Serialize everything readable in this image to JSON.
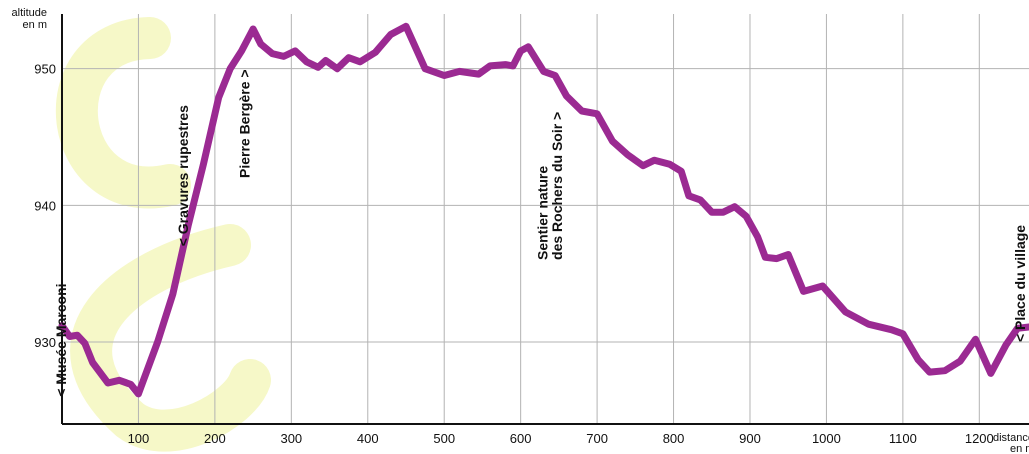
{
  "chart_data": {
    "type": "line",
    "ylabel_line1": "altitude",
    "ylabel_line2": "en m",
    "xlabel_line1": "distance",
    "xlabel_line2": "en m",
    "xlim": [
      0,
      1265
    ],
    "ylim": [
      924,
      954
    ],
    "x_ticks": [
      100,
      200,
      300,
      400,
      500,
      600,
      700,
      800,
      900,
      1000,
      1100,
      1200
    ],
    "y_ticks": [
      930,
      940,
      950
    ],
    "series": [
      {
        "color": "#9b2a92",
        "x": [
          0,
          10,
          20,
          30,
          40,
          60,
          75,
          90,
          100,
          125,
          145,
          165,
          185,
          205,
          220,
          235,
          250,
          260,
          275,
          290,
          305,
          320,
          335,
          345,
          360,
          375,
          390,
          410,
          430,
          450,
          475,
          500,
          520,
          545,
          560,
          580,
          590,
          600,
          610,
          630,
          645,
          660,
          680,
          700,
          720,
          740,
          760,
          775,
          795,
          810,
          820,
          835,
          850,
          865,
          880,
          895,
          910,
          920,
          935,
          950,
          970,
          995,
          1025,
          1055,
          1085,
          1100,
          1120,
          1135,
          1155,
          1175,
          1195,
          1215,
          1235,
          1250,
          1265
        ],
        "y": [
          931.2,
          930.4,
          930.5,
          929.9,
          928.5,
          927.0,
          927.2,
          926.9,
          926.2,
          930.0,
          933.5,
          938.5,
          943.0,
          947.9,
          950.0,
          951.3,
          952.9,
          951.8,
          951.1,
          950.9,
          951.3,
          950.5,
          950.1,
          950.6,
          950.0,
          950.8,
          950.5,
          951.2,
          952.5,
          953.1,
          950.0,
          949.5,
          949.8,
          949.6,
          950.2,
          950.3,
          950.2,
          951.3,
          951.6,
          949.8,
          949.5,
          948.0,
          946.9,
          946.7,
          944.7,
          943.7,
          942.9,
          943.3,
          943.0,
          942.5,
          940.7,
          940.4,
          939.5,
          939.5,
          939.9,
          939.2,
          937.7,
          936.2,
          936.1,
          936.4,
          933.7,
          934.1,
          932.2,
          931.3,
          930.9,
          930.6,
          928.7,
          927.8,
          927.9,
          928.6,
          930.2,
          927.7,
          929.8,
          931.0,
          931.1
        ]
      }
    ],
    "annotations": [
      {
        "text": "< Musée Marconi",
        "x": 5,
        "y": 926
      },
      {
        "text": "< Gravures rupestres",
        "x": 165,
        "y": 937
      },
      {
        "text": "Pierre Bergère >",
        "x": 245,
        "y": 942
      },
      {
        "text": "Sentier nature",
        "x": 635,
        "y": 936
      },
      {
        "text": "des Rochers du Soir >",
        "x": 654,
        "y": 936
      },
      {
        "text": "< Place du village",
        "x": 1260,
        "y": 930
      }
    ],
    "watermark": "CS",
    "grid": true,
    "legend": "none"
  }
}
